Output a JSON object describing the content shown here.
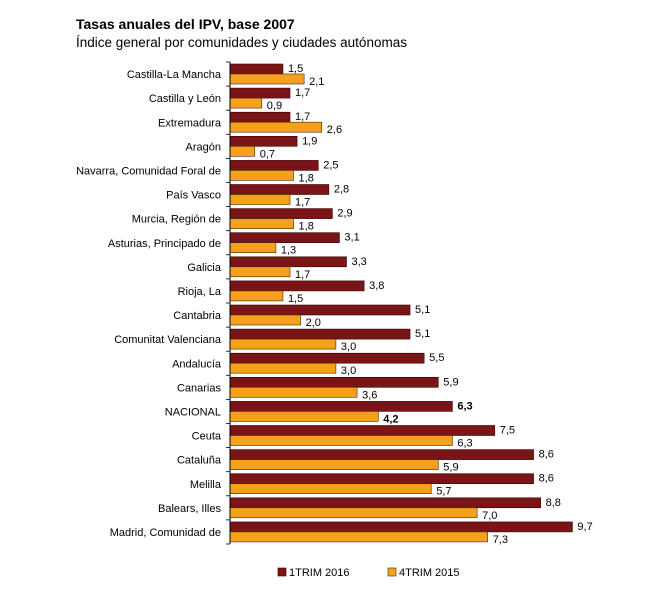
{
  "header": {
    "title": "Tasas anuales del IPV, base 2007",
    "subtitle": "Índice general por comunidades y ciudades autónomas"
  },
  "chart_data": {
    "type": "bar",
    "orientation": "horizontal",
    "title": "Tasas anuales del IPV, base 2007",
    "subtitle": "Índice general por comunidades y ciudades autónomas",
    "xlabel": "",
    "ylabel": "",
    "xlim": [
      0,
      10
    ],
    "grid": false,
    "legend_position": "bottom",
    "highlight_category": "NACIONAL",
    "categories": [
      "Castilla-La Mancha",
      "Castilla y León",
      "Extremadura",
      "Aragón",
      "Navarra, Comunidad Foral de",
      "País Vasco",
      "Murcia, Región de",
      "Asturias, Principado de",
      "Galicia",
      "Rioja, La",
      "Cantabria",
      "Comunitat Valenciana",
      "Andalucía",
      "Canarias",
      "NACIONAL",
      "Ceuta",
      "Cataluña",
      "Melilla",
      "Balears, Illes",
      "Madrid, Comunidad de"
    ],
    "series": [
      {
        "name": "1TRIM 2016",
        "color": "#7b1416",
        "values": [
          1.5,
          1.7,
          1.7,
          1.9,
          2.5,
          2.8,
          2.9,
          3.1,
          3.3,
          3.8,
          5.1,
          5.1,
          5.5,
          5.9,
          6.3,
          7.5,
          8.6,
          8.6,
          8.8,
          9.7
        ],
        "labels": [
          "1,5",
          "1,7",
          "1,7",
          "1,9",
          "2,5",
          "2,8",
          "2,9",
          "3,1",
          "3,3",
          "3,8",
          "5,1",
          "5,1",
          "5,5",
          "5,9",
          "6,3",
          "7,5",
          "8,6",
          "8,6",
          "8,8",
          "9,7"
        ]
      },
      {
        "name": "4TRIM 2015",
        "color": "#f5a11c",
        "values": [
          2.1,
          0.9,
          2.6,
          0.7,
          1.8,
          1.7,
          1.8,
          1.3,
          1.7,
          1.5,
          2.0,
          3.0,
          3.0,
          3.6,
          4.2,
          6.3,
          5.9,
          5.7,
          7.0,
          7.3
        ],
        "labels": [
          "2,1",
          "0,9",
          "2,6",
          "0,7",
          "1,8",
          "1,7",
          "1,8",
          "1,3",
          "1,7",
          "1,5",
          "2,0",
          "3,0",
          "3,0",
          "3,6",
          "4,2",
          "6,3",
          "5,9",
          "5,7",
          "7,0",
          "7,3"
        ]
      }
    ]
  }
}
